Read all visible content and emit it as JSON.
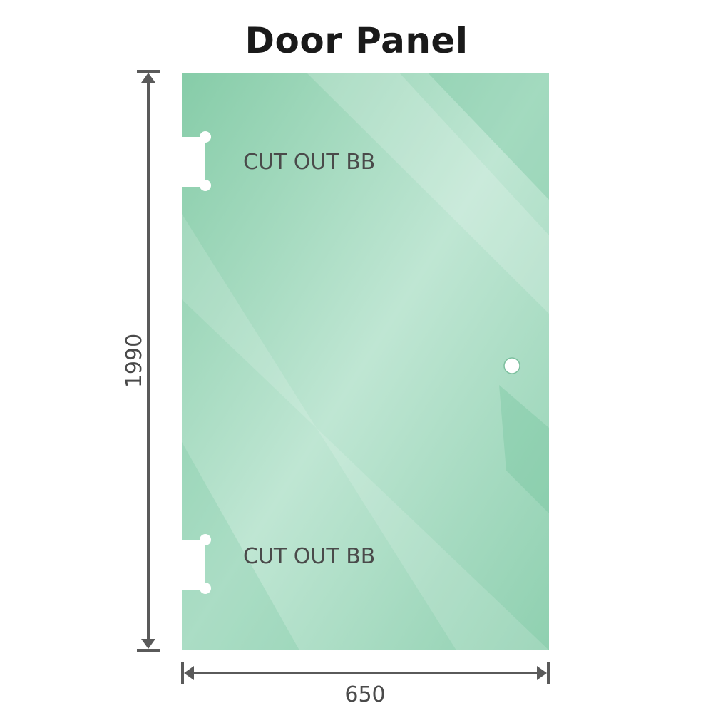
{
  "title": "Door Panel",
  "panel": {
    "color": "#8fd0b0",
    "highlight_color": "#c2e8d6",
    "cutout_top_label": "CUT OUT BB",
    "cutout_bottom_label": "CUT OUT BB"
  },
  "dimensions": {
    "height": "1990",
    "width": "650",
    "line_color": "#5a5a5a"
  }
}
